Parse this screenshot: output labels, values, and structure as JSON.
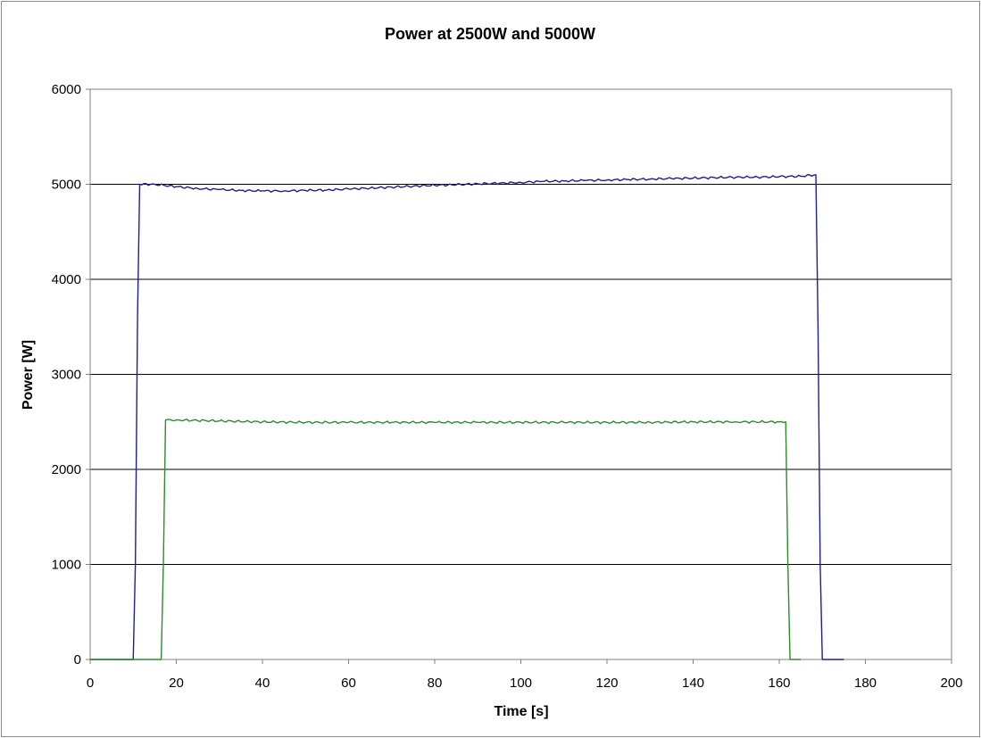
{
  "chart_data": {
    "type": "line",
    "title": "Power at 2500W and 5000W",
    "xlabel": "Time [s]",
    "ylabel": "Power [W]",
    "xlim": [
      0,
      200
    ],
    "ylim": [
      0,
      6000
    ],
    "xticks": [
      0,
      20,
      40,
      60,
      80,
      100,
      120,
      140,
      160,
      180,
      200
    ],
    "yticks": [
      0,
      1000,
      2000,
      3000,
      4000,
      5000,
      6000
    ],
    "grid": "horizontal",
    "legend": "none",
    "series": [
      {
        "color": "#1f1f8f",
        "x": [
          0,
          10,
          10.5,
          11,
          11.5,
          15,
          20,
          25,
          30,
          35,
          40,
          45,
          50,
          55,
          60,
          65,
          70,
          75,
          80,
          85,
          90,
          95,
          100,
          105,
          110,
          115,
          120,
          125,
          130,
          135,
          140,
          145,
          150,
          155,
          160,
          165,
          168.5,
          169,
          169.5,
          170,
          175
        ],
        "y": [
          0,
          0,
          1000,
          3600,
          5000,
          5000,
          4975,
          4955,
          4945,
          4935,
          4930,
          4930,
          4935,
          4940,
          4950,
          4960,
          4970,
          4980,
          4990,
          4995,
          5005,
          5010,
          5020,
          5030,
          5035,
          5040,
          5045,
          5050,
          5055,
          5060,
          5065,
          5070,
          5075,
          5075,
          5080,
          5085,
          5100,
          3500,
          1000,
          0,
          0
        ]
      },
      {
        "color": "#2e8b2e",
        "x": [
          0,
          16.5,
          17,
          17.5,
          20,
          30,
          40,
          50,
          60,
          70,
          80,
          90,
          100,
          110,
          120,
          130,
          140,
          150,
          160,
          161.5,
          162,
          162.5,
          163,
          165
        ],
        "y": [
          0,
          0,
          1000,
          2520,
          2520,
          2510,
          2500,
          2495,
          2495,
          2495,
          2495,
          2495,
          2495,
          2495,
          2495,
          2495,
          2500,
          2500,
          2500,
          2500,
          1000,
          0,
          0,
          0
        ]
      }
    ]
  }
}
